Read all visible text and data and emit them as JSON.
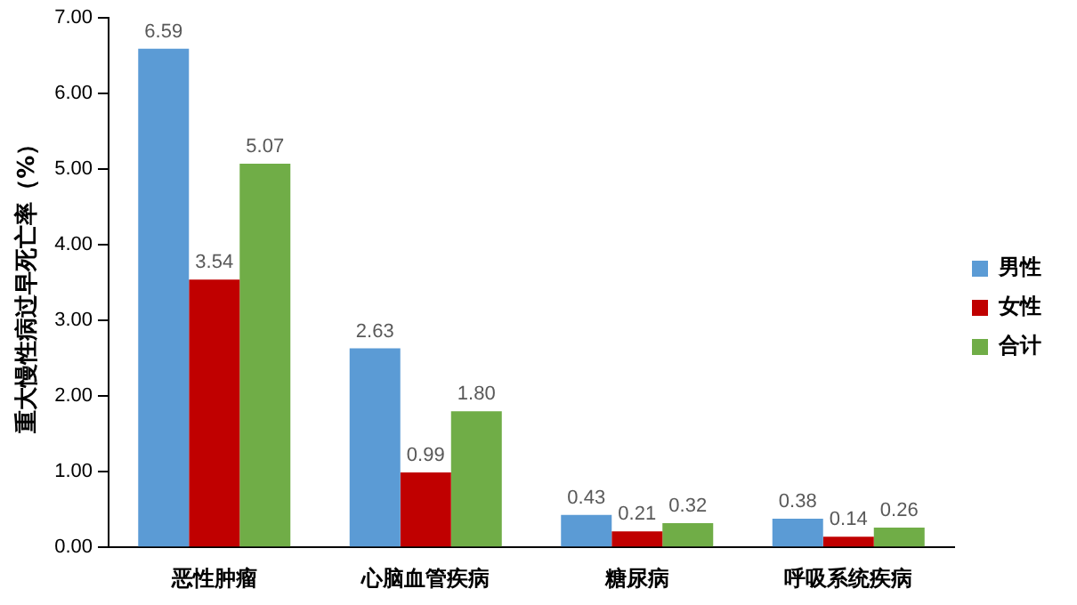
{
  "chart_data": {
    "type": "bar",
    "ylabel": "重大慢性病过早死亡率（%）",
    "categories": [
      "恶性肿瘤",
      "心脑血管疾病",
      "糖尿病",
      "呼吸系统疾病"
    ],
    "series": [
      {
        "name": "男性",
        "color": "#5b9bd5",
        "values": [
          6.59,
          2.63,
          0.43,
          0.38
        ]
      },
      {
        "name": "女性",
        "color": "#c00000",
        "values": [
          3.54,
          0.99,
          0.21,
          0.14
        ]
      },
      {
        "name": "合计",
        "color": "#70ad47",
        "values": [
          5.07,
          1.8,
          0.32,
          0.26
        ]
      }
    ],
    "ylim": [
      0,
      7
    ],
    "yticks": [
      {
        "value": 0,
        "label": "0.00"
      },
      {
        "value": 1,
        "label": "1.00"
      },
      {
        "value": 2,
        "label": "2.00"
      },
      {
        "value": 3,
        "label": "3.00"
      },
      {
        "value": 4,
        "label": "4.00"
      },
      {
        "value": 5,
        "label": "5.00"
      },
      {
        "value": 6,
        "label": "6.00"
      },
      {
        "value": 7,
        "label": "7.00"
      }
    ],
    "value_labels": [
      [
        "6.59",
        "2.63",
        "0.43",
        "0.38"
      ],
      [
        "3.54",
        "0.99",
        "0.21",
        "0.14"
      ],
      [
        "5.07",
        "1.80",
        "0.32",
        "0.26"
      ]
    ],
    "grid": false,
    "legend": "right"
  }
}
